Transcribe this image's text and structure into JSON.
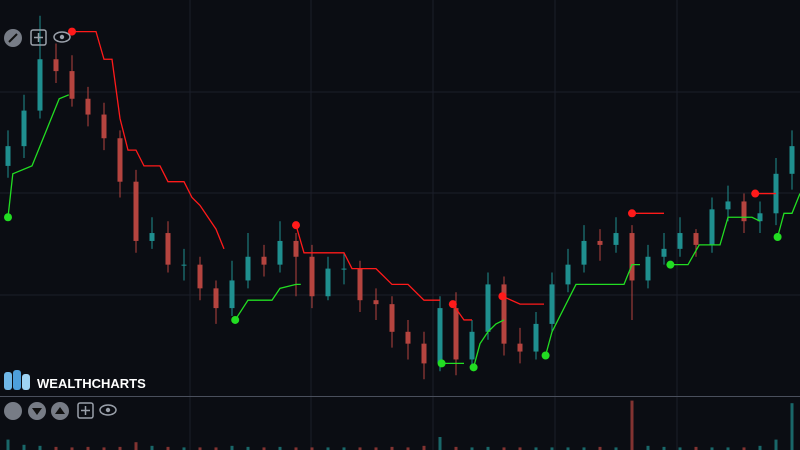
{
  "logo": "WEALTHCHARTS",
  "chart_data": {
    "type": "candlestick",
    "xlim": [
      -0.5,
      49.5
    ],
    "ylim": [
      0,
      100
    ],
    "up_color": "#1f8f8f",
    "down_color": "#b5443f",
    "open": [
      58,
      63,
      72,
      85,
      82,
      75,
      71,
      65,
      54,
      39,
      41,
      33,
      33,
      27,
      22,
      29,
      35,
      33,
      39,
      35,
      25,
      32,
      32,
      24,
      23,
      16,
      13,
      8,
      22,
      9,
      16,
      28,
      13,
      11,
      18,
      28,
      33,
      39,
      38,
      41,
      29,
      35,
      37,
      41,
      38,
      47,
      49,
      44,
      46,
      56
    ],
    "high": [
      67,
      76,
      96,
      89,
      86,
      78,
      74,
      67,
      57,
      45,
      44,
      37,
      35,
      29,
      34,
      41,
      38,
      44,
      41,
      38,
      35,
      36,
      34,
      27,
      25,
      19,
      16,
      25,
      26,
      19,
      31,
      30,
      17,
      21,
      31,
      37,
      43,
      42,
      45,
      43,
      38,
      41,
      45,
      42,
      50,
      53,
      51,
      49,
      60,
      67
    ],
    "low": [
      55,
      60,
      70,
      79,
      73,
      68,
      62,
      50,
      36,
      37,
      31,
      29,
      24,
      18,
      20,
      27,
      30,
      31,
      25,
      22,
      24,
      28,
      21,
      19,
      12,
      9,
      4,
      6,
      5,
      7,
      14,
      10,
      8,
      9,
      16,
      26,
      31,
      34,
      36,
      19,
      27,
      33,
      35,
      35,
      36,
      44,
      41,
      41,
      43,
      52
    ],
    "close": [
      63,
      72,
      85,
      82,
      75,
      71,
      65,
      54,
      39,
      41,
      33,
      33,
      27,
      22,
      29,
      35,
      33,
      39,
      35,
      25,
      32,
      32,
      24,
      23,
      16,
      13,
      8,
      22,
      9,
      16,
      28,
      13,
      11,
      18,
      28,
      33,
      39,
      38,
      41,
      29,
      35,
      37,
      41,
      38,
      47,
      49,
      44,
      46,
      56,
      63
    ],
    "series": [
      {
        "type": "line",
        "color": "#22dd22",
        "x": [
          0,
          0.3,
          1.5,
          2,
          2.5,
          3.2,
          3.8,
          null,
          14.2,
          15,
          16.5,
          17,
          18,
          18.3,
          null,
          27.1,
          28.5,
          null,
          29.1,
          29.5,
          30,
          30.5,
          31,
          null,
          33.6,
          34,
          35,
          35.5,
          38.5,
          39,
          39.5,
          null,
          41.4,
          42.5,
          43.2,
          44.5,
          45,
          46.5,
          47,
          null,
          48.1,
          48.5,
          49,
          49.5
        ],
        "values": [
          45,
          56,
          58,
          63,
          68,
          75,
          76,
          null,
          19,
          24,
          24,
          27,
          28,
          28,
          null,
          8,
          8,
          null,
          7,
          13,
          16,
          18,
          19,
          null,
          10,
          16,
          24,
          28,
          28,
          33,
          33,
          null,
          33,
          33,
          38,
          38,
          45,
          45,
          44,
          null,
          40,
          46,
          46,
          51
        ]
      },
      {
        "type": "line",
        "color": "#ff1a1a",
        "x": [
          4,
          5.5,
          6,
          6.5,
          7,
          7.5,
          8,
          8.5,
          9.5,
          10,
          11,
          11.5,
          12,
          13,
          13.5,
          null,
          18,
          18.5,
          21,
          21.5,
          23,
          24,
          25,
          26,
          27,
          null,
          27.8,
          28.5,
          29,
          null,
          30.9,
          32,
          33.5,
          null,
          39,
          41,
          null,
          46.7,
          48
        ],
        "values": [
          92,
          92,
          85,
          85,
          70,
          62,
          62,
          58,
          58,
          54,
          54,
          50,
          48,
          42,
          37,
          null,
          43,
          36,
          36,
          32,
          32,
          28,
          28,
          24,
          24,
          null,
          23,
          19,
          19,
          null,
          25,
          23,
          23,
          null,
          46,
          46,
          null,
          51,
          51
        ]
      }
    ],
    "volume": {
      "ylim": [
        0,
        100
      ],
      "values": [
        20,
        10,
        8,
        6,
        5,
        6,
        5,
        6,
        15,
        8,
        6,
        5,
        5,
        5,
        8,
        6,
        5,
        6,
        5,
        5,
        5,
        5,
        5,
        5,
        6,
        5,
        8,
        25,
        6,
        5,
        6,
        5,
        5,
        5,
        5,
        5,
        5,
        6,
        5,
        95,
        8,
        6,
        5,
        6,
        5,
        5,
        5,
        8,
        20,
        90
      ]
    }
  }
}
